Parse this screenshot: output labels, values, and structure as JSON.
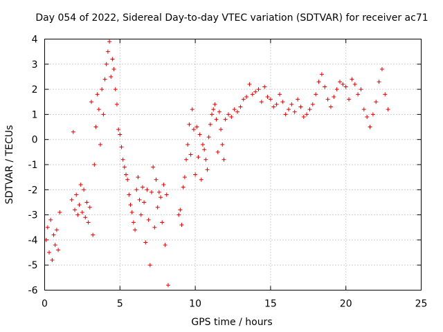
{
  "chart_data": {
    "type": "scatter",
    "title": "Day 054 of 2022, Sidereal Day-to-day VTEC variation (SDTVAR) for receiver ac71",
    "xlabel": "GPS time / hours",
    "ylabel": "SDTVAR / TECUs",
    "xlim": [
      0,
      25
    ],
    "ylim": [
      -6,
      4
    ],
    "x_ticks": [
      0,
      5,
      10,
      15,
      20,
      25
    ],
    "x_tick_labels": [
      "0",
      "5",
      "10",
      "15",
      "20",
      "25"
    ],
    "y_ticks": [
      -6,
      -5,
      -4,
      -3,
      -2,
      -1,
      0,
      1,
      2,
      3,
      4
    ],
    "y_tick_labels": [
      "-6",
      "-5",
      "-4",
      "-3",
      "-2",
      "-1",
      "0",
      "1",
      "2",
      "3",
      "4"
    ],
    "grid": true,
    "marker": "+",
    "series": [
      {
        "name": "SDTVAR",
        "color": "#e00000",
        "x": [
          0.1,
          0.2,
          0.3,
          0.4,
          0.5,
          0.6,
          0.7,
          0.8,
          0.9,
          1.0,
          1.8,
          1.9,
          2.0,
          2.1,
          2.2,
          2.3,
          2.4,
          2.5,
          2.6,
          2.7,
          2.8,
          2.9,
          3.0,
          3.1,
          3.2,
          3.3,
          3.4,
          3.5,
          3.6,
          3.7,
          3.8,
          3.9,
          4.0,
          4.1,
          4.2,
          4.3,
          4.4,
          4.5,
          4.6,
          4.7,
          4.8,
          4.9,
          5.0,
          5.1,
          5.2,
          5.3,
          5.4,
          5.5,
          5.6,
          5.7,
          5.8,
          5.9,
          6.0,
          6.1,
          6.2,
          6.3,
          6.4,
          6.5,
          6.6,
          6.7,
          6.8,
          6.9,
          7.0,
          7.1,
          7.2,
          7.3,
          7.4,
          7.5,
          7.6,
          7.7,
          7.8,
          7.9,
          8.0,
          8.1,
          8.2,
          8.9,
          9.0,
          9.1,
          9.2,
          9.3,
          9.4,
          9.5,
          9.6,
          9.7,
          9.8,
          9.9,
          10.0,
          10.1,
          10.2,
          10.3,
          10.4,
          10.5,
          10.6,
          10.7,
          10.8,
          10.9,
          11.0,
          11.1,
          11.2,
          11.3,
          11.4,
          11.5,
          11.6,
          11.7,
          11.8,
          11.9,
          12.0,
          12.2,
          12.4,
          12.6,
          12.8,
          13.0,
          13.2,
          13.4,
          13.6,
          13.8,
          14.0,
          14.2,
          14.4,
          14.6,
          14.8,
          15.0,
          15.2,
          15.4,
          15.6,
          15.8,
          16.0,
          16.2,
          16.4,
          16.6,
          16.8,
          17.0,
          17.2,
          17.4,
          17.6,
          17.8,
          18.0,
          18.2,
          18.4,
          18.6,
          18.8,
          19.0,
          19.2,
          19.4,
          19.6,
          19.8,
          20.0,
          20.2,
          20.4,
          20.6,
          20.8,
          21.0,
          21.2,
          21.4,
          21.6,
          21.8,
          22.0,
          22.2,
          22.4,
          22.6,
          22.8
        ],
        "y": [
          -4.0,
          -3.5,
          -4.5,
          -3.2,
          -4.8,
          -3.8,
          -4.2,
          -3.6,
          -4.4,
          -2.9,
          -2.4,
          0.3,
          -2.8,
          -2.2,
          -3.0,
          -2.6,
          -1.8,
          -2.9,
          -2.0,
          -3.1,
          -2.5,
          -3.3,
          -2.7,
          1.5,
          -3.8,
          -1.0,
          0.5,
          1.8,
          1.2,
          -0.2,
          2.0,
          1.0,
          2.4,
          3.0,
          3.5,
          3.9,
          2.5,
          3.2,
          2.8,
          2.0,
          1.4,
          0.4,
          0.2,
          -0.3,
          -0.8,
          -1.1,
          -1.4,
          -1.6,
          -2.2,
          -2.6,
          -2.9,
          -3.3,
          -3.6,
          -2.0,
          -1.5,
          -2.4,
          -3.0,
          -1.9,
          -2.5,
          -4.1,
          -2.0,
          -3.2,
          -5.0,
          -2.1,
          -1.1,
          -3.5,
          -1.6,
          -2.7,
          -2.1,
          -2.3,
          -3.3,
          -1.8,
          -4.2,
          -2.2,
          -5.8,
          -3.0,
          -2.8,
          -3.4,
          -1.9,
          -1.5,
          -0.8,
          -0.2,
          0.6,
          -0.6,
          1.2,
          0.4,
          -1.4,
          0.5,
          -0.7,
          0.2,
          -1.6,
          -0.2,
          -0.4,
          -0.8,
          -1.2,
          0.1,
          0.6,
          1.0,
          1.2,
          1.4,
          0.8,
          -0.5,
          1.1,
          0.4,
          -0.2,
          -0.8,
          0.8,
          1.0,
          0.9,
          1.2,
          1.1,
          1.3,
          1.6,
          1.7,
          2.2,
          1.8,
          1.9,
          2.0,
          1.5,
          2.1,
          1.7,
          1.6,
          1.3,
          1.4,
          1.8,
          1.5,
          1.0,
          1.2,
          1.4,
          1.1,
          1.6,
          1.3,
          0.9,
          1.0,
          1.2,
          1.4,
          1.8,
          2.3,
          2.6,
          2.1,
          1.6,
          1.3,
          1.7,
          2.0,
          2.3,
          2.2,
          2.1,
          1.6,
          2.4,
          2.2,
          1.8,
          2.0,
          1.2,
          0.9,
          0.5,
          1.0,
          1.5,
          2.3,
          2.8,
          1.8,
          1.2
        ]
      }
    ]
  }
}
